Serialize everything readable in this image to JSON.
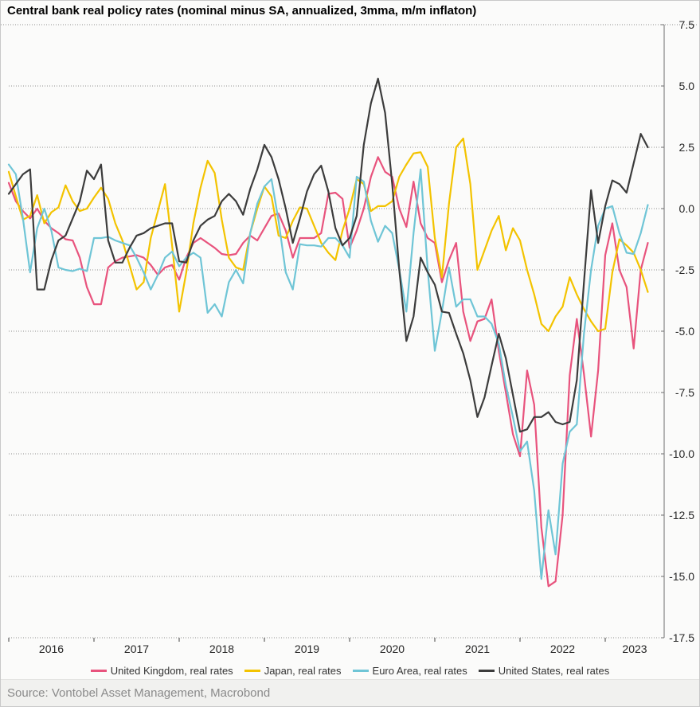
{
  "title": "Central bank real policy rates (nominal minus SA, annualized, 3mma, m/m inflaton)",
  "source": "Source: Vontobel Asset Management, Macrobond",
  "colors": {
    "uk": "#e8537d",
    "japan": "#f3c300",
    "euro_area": "#6fc5d6",
    "us": "#3c3c3c",
    "grid": "#8f8f8f",
    "axis": "#6e6e6e",
    "tick_text": "#262626"
  },
  "chart_data": {
    "type": "line",
    "title": "Central bank real policy rates (nominal minus SA, annualized, 3mma, m/m inflaton)",
    "x_unit": "month",
    "x_start": "2016-01",
    "x_end": "2023-07",
    "x_tick_labels": [
      "2016",
      "2017",
      "2018",
      "2019",
      "2020",
      "2021",
      "2022",
      "2023"
    ],
    "ylim": [
      -17.5,
      7.5
    ],
    "y_ticks": [
      "7.5",
      "5.0",
      "2.5",
      "0.0",
      "-2.5",
      "-5.0",
      "-7.5",
      "-10.0",
      "-12.5",
      "-15.0",
      "-17.5"
    ],
    "grid": "horizontal-dotted",
    "legend_position": "bottom",
    "series": [
      {
        "name": "United Kingdom, real rates",
        "color": "#e8537d",
        "values": [
          1.05,
          0.3,
          -0.1,
          -0.4,
          0.0,
          -0.5,
          -0.8,
          -1.0,
          -1.25,
          -1.3,
          -2.0,
          -3.2,
          -3.9,
          -3.9,
          -2.4,
          -2.15,
          -2.0,
          -1.95,
          -1.9,
          -2.0,
          -2.3,
          -2.7,
          -2.4,
          -2.3,
          -2.9,
          -2.0,
          -1.4,
          -1.2,
          -1.4,
          -1.6,
          -1.85,
          -1.9,
          -1.85,
          -1.4,
          -1.1,
          -1.3,
          -0.8,
          -0.3,
          -0.2,
          -0.9,
          -2.0,
          -1.2,
          -1.2,
          -1.2,
          -1.0,
          0.6,
          0.65,
          0.4,
          -1.6,
          -0.9,
          0.0,
          1.3,
          2.1,
          1.5,
          1.3,
          0.0,
          -0.75,
          1.1,
          -0.6,
          -1.2,
          -1.4,
          -3.0,
          -2.1,
          -1.4,
          -4.2,
          -5.4,
          -4.6,
          -4.5,
          -3.7,
          -5.8,
          -7.5,
          -9.2,
          -10.1,
          -6.6,
          -8.0,
          -13.0,
          -15.4,
          -15.2,
          -12.5,
          -6.8,
          -4.5,
          -6.75,
          -9.3,
          -6.6,
          -1.9,
          -0.6,
          -2.5,
          -3.2,
          -5.7,
          -2.5,
          -1.4
        ]
      },
      {
        "name": "Japan, real rates",
        "color": "#f3c300",
        "values": [
          1.5,
          0.5,
          -0.45,
          -0.3,
          0.55,
          -0.6,
          -0.15,
          0.05,
          0.95,
          0.3,
          -0.1,
          0.0,
          0.45,
          0.85,
          0.4,
          -0.6,
          -1.3,
          -2.3,
          -3.3,
          -3.0,
          -1.2,
          -0.1,
          1.0,
          -1.5,
          -4.2,
          -2.6,
          -0.6,
          0.85,
          1.95,
          1.45,
          -0.45,
          -2.0,
          -2.4,
          -2.5,
          -1.0,
          0.0,
          0.9,
          0.5,
          -1.1,
          -1.2,
          -0.5,
          0.05,
          0.0,
          -0.7,
          -1.4,
          -1.8,
          -2.1,
          -0.9,
          0.0,
          1.2,
          1.0,
          -0.1,
          0.1,
          0.1,
          0.3,
          1.3,
          1.8,
          2.25,
          2.3,
          1.7,
          -1.2,
          -2.8,
          0.2,
          2.5,
          2.86,
          1.0,
          -2.5,
          -1.7,
          -0.9,
          -0.3,
          -1.7,
          -0.8,
          -1.3,
          -2.5,
          -3.5,
          -4.7,
          -5.0,
          -4.4,
          -4.0,
          -2.8,
          -3.5,
          -4.1,
          -4.6,
          -5.0,
          -4.9,
          -2.6,
          -1.25,
          -1.5,
          -1.8,
          -2.5,
          -3.4
        ]
      },
      {
        "name": "Euro Area, real rates",
        "color": "#6fc5d6",
        "values": [
          1.8,
          1.4,
          -0.4,
          -2.6,
          -0.8,
          0.0,
          -0.9,
          -2.4,
          -2.5,
          -2.55,
          -2.45,
          -2.55,
          -1.2,
          -1.2,
          -1.15,
          -1.3,
          -1.4,
          -1.5,
          -2.0,
          -2.6,
          -3.3,
          -2.7,
          -2.0,
          -1.75,
          -2.35,
          -2.0,
          -1.8,
          -2.0,
          -4.25,
          -3.9,
          -4.4,
          -3.0,
          -2.5,
          -3.05,
          -1.0,
          0.2,
          0.9,
          1.2,
          -0.5,
          -2.6,
          -3.3,
          -1.45,
          -1.5,
          -1.5,
          -1.55,
          -1.2,
          -1.2,
          -1.5,
          -2.0,
          1.3,
          1.1,
          -0.5,
          -1.35,
          -0.7,
          -1.0,
          -2.5,
          -4.2,
          -1.0,
          1.6,
          -2.5,
          -5.8,
          -4.2,
          -2.4,
          -4.0,
          -3.7,
          -3.7,
          -4.4,
          -4.4,
          -4.7,
          -5.5,
          -7.2,
          -8.5,
          -9.9,
          -9.5,
          -11.5,
          -15.1,
          -12.3,
          -14.1,
          -10.4,
          -9.1,
          -8.8,
          -5.1,
          -2.5,
          -0.7,
          0.0,
          0.1,
          -1.0,
          -1.8,
          -1.85,
          -1.0,
          0.15
        ]
      },
      {
        "name": "United States, real rates",
        "color": "#3c3c3c",
        "values": [
          0.6,
          1.0,
          1.4,
          1.6,
          -3.3,
          -3.3,
          -2.1,
          -1.3,
          -1.1,
          -0.4,
          0.3,
          1.55,
          1.2,
          1.8,
          -1.3,
          -2.2,
          -2.2,
          -1.6,
          -1.1,
          -1.0,
          -0.8,
          -0.7,
          -0.6,
          -0.6,
          -2.15,
          -2.2,
          -1.3,
          -0.7,
          -0.45,
          -0.3,
          0.3,
          0.6,
          0.3,
          -0.25,
          0.8,
          1.6,
          2.6,
          2.1,
          1.2,
          0.0,
          -1.4,
          -0.4,
          0.7,
          1.4,
          1.75,
          0.7,
          -0.8,
          -1.5,
          -1.2,
          -0.3,
          2.6,
          4.3,
          5.3,
          3.9,
          1.0,
          -2.5,
          -5.4,
          -4.4,
          -2.0,
          -2.6,
          -3.1,
          -4.2,
          -4.25,
          -5.1,
          -5.9,
          -7.0,
          -8.5,
          -7.7,
          -6.4,
          -5.1,
          -6.1,
          -7.6,
          -9.1,
          -9.0,
          -8.5,
          -8.5,
          -8.3,
          -8.7,
          -8.8,
          -8.7,
          -7.0,
          -3.0,
          0.75,
          -1.4,
          0.1,
          1.15,
          1.0,
          0.65,
          1.85,
          3.05,
          2.5
        ]
      }
    ]
  }
}
